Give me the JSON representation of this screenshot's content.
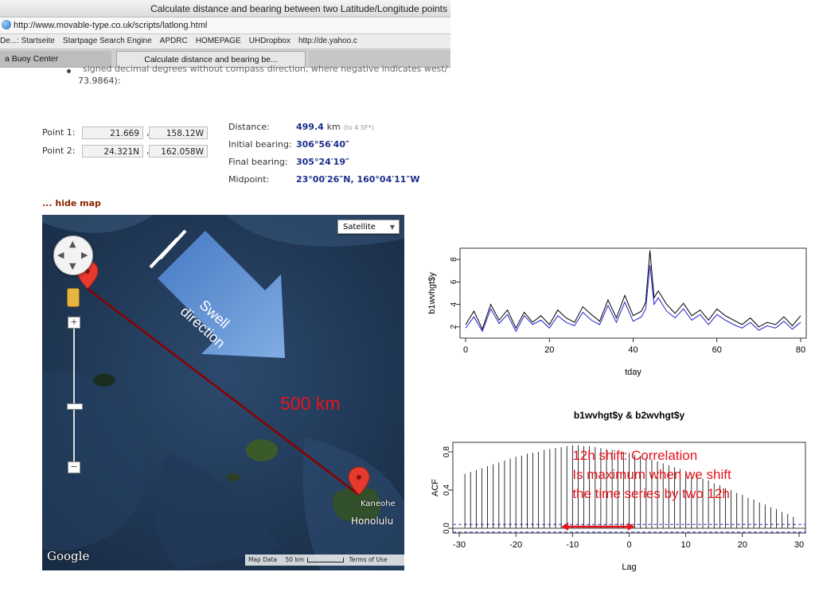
{
  "browser": {
    "window_title": "Calculate distance and bearing between two Latitude/Longitude points",
    "url": "http://www.movable-type.co.uk/scripts/latlong.html",
    "bookmarks": [
      "De...: Startseite",
      "Startpage Search Engine",
      "APDRC",
      "HOMEPAGE",
      "UHDropbox",
      "http://de.yahoo.c"
    ],
    "tabs": [
      "a Buoy Center",
      "Calculate distance and bearing be...",
      ""
    ]
  },
  "page": {
    "clipped_line": "signed decimal degrees without compass direction, where negative indicates west/",
    "clipped_line2": "73.9864):",
    "point1": {
      "label": "Point 1:",
      "lat": "21.669",
      "lon": "158.12W"
    },
    "point2": {
      "label": "Point 2:",
      "lat": "24.321N",
      "lon": "162.058W"
    },
    "comma": ",",
    "results": {
      "distance_label": "Distance:",
      "distance_value": "499.4",
      "distance_unit": "km",
      "distance_note": "(to 4 SF*)",
      "initial_label": "Initial bearing:",
      "initial_value": "306°56′40″",
      "final_label": "Final bearing:",
      "final_value": "305°24′19″",
      "midpoint_label": "Midpoint:",
      "midpoint_value": "23°00′26″N, 160°04′11″W"
    },
    "hide_map": "... hide map"
  },
  "map": {
    "satellite_button": "Satellite",
    "kaneohe": "Kaneohe",
    "honolulu": "Honolulu",
    "google": "Google",
    "map_data": "Map Data",
    "scale": "50 km",
    "terms": "Terms of Use",
    "annotations": {
      "swell_line1": "Swell",
      "swell_line2": "direction",
      "distance": "500 km"
    },
    "colors": {
      "route": "#8b0000",
      "annotation": "#e8141c",
      "marker": "#e8392f"
    }
  },
  "chart_data": [
    {
      "type": "line",
      "xlabel": "tday",
      "ylabel": "b1wvhgt$y",
      "xlim": [
        0,
        80
      ],
      "ylim": [
        1,
        9
      ],
      "xticks": [
        0,
        20,
        40,
        60,
        80
      ],
      "yticks": [
        2,
        4,
        6,
        8
      ],
      "x": [
        0,
        2,
        4,
        6,
        8,
        10,
        12,
        14,
        16,
        18,
        20,
        22,
        24,
        26,
        28,
        30,
        32,
        34,
        36,
        38,
        40,
        42,
        43,
        44,
        45,
        46,
        48,
        50,
        52,
        54,
        56,
        58,
        60,
        62,
        64,
        66,
        68,
        70,
        72,
        74,
        76,
        78,
        80
      ],
      "series": [
        {
          "color": "#000000",
          "values": [
            2.2,
            3.4,
            1.8,
            4.0,
            2.6,
            3.5,
            1.9,
            3.3,
            2.4,
            3.0,
            2.2,
            3.5,
            2.8,
            2.4,
            3.8,
            3.1,
            2.5,
            4.4,
            2.8,
            4.8,
            3.0,
            3.4,
            4.2,
            8.8,
            4.6,
            5.2,
            4.0,
            3.2,
            4.1,
            3.0,
            3.5,
            2.6,
            3.6,
            3.0,
            2.6,
            2.2,
            2.8,
            2.0,
            2.4,
            2.2,
            2.9,
            2.1,
            3.0
          ]
        },
        {
          "color": "#2222cc",
          "values": [
            1.9,
            2.9,
            1.6,
            3.6,
            2.3,
            3.1,
            1.6,
            3.0,
            2.2,
            2.6,
            1.9,
            3.0,
            2.4,
            2.1,
            3.3,
            2.6,
            2.2,
            3.9,
            2.4,
            4.2,
            2.5,
            2.9,
            3.6,
            7.5,
            4.0,
            4.6,
            3.4,
            2.8,
            3.6,
            2.6,
            3.1,
            2.2,
            3.1,
            2.6,
            2.2,
            1.9,
            2.4,
            1.7,
            2.1,
            1.9,
            2.5,
            1.8,
            2.4
          ]
        }
      ]
    },
    {
      "type": "bar",
      "title": "b1wvhgt$y & b2wvhgt$y",
      "xlabel": "Lag",
      "ylabel": "ACF",
      "xlim": [
        -30,
        30
      ],
      "ylim": [
        -0.05,
        0.9
      ],
      "xticks": [
        -30,
        -20,
        -10,
        0,
        10,
        20,
        30
      ],
      "yticks": [
        0.0,
        0.4,
        0.8
      ],
      "lags": [
        -29,
        -28,
        -27,
        -26,
        -25,
        -24,
        -23,
        -22,
        -21,
        -20,
        -19,
        -18,
        -17,
        -16,
        -15,
        -14,
        -13,
        -12,
        -11,
        -10,
        -9,
        -8,
        -7,
        -6,
        -5,
        -4,
        -3,
        -2,
        -1,
        0,
        1,
        2,
        3,
        4,
        5,
        6,
        7,
        8,
        9,
        10,
        11,
        12,
        13,
        14,
        15,
        16,
        17,
        18,
        19,
        20,
        21,
        22,
        23,
        24,
        25,
        26,
        27,
        28,
        29
      ],
      "values": [
        0.57,
        0.59,
        0.61,
        0.63,
        0.65,
        0.67,
        0.69,
        0.71,
        0.73,
        0.75,
        0.76,
        0.78,
        0.79,
        0.8,
        0.82,
        0.83,
        0.84,
        0.85,
        0.86,
        0.87,
        0.87,
        0.86,
        0.86,
        0.85,
        0.84,
        0.83,
        0.82,
        0.81,
        0.8,
        0.79,
        0.77,
        0.76,
        0.74,
        0.72,
        0.7,
        0.68,
        0.66,
        0.64,
        0.62,
        0.6,
        0.57,
        0.55,
        0.52,
        0.5,
        0.47,
        0.45,
        0.42,
        0.4,
        0.37,
        0.35,
        0.32,
        0.3,
        0.27,
        0.25,
        0.22,
        0.2,
        0.17,
        0.15,
        0.12
      ],
      "confidence_band": 0.04,
      "annotation_lines": [
        "12h shift: Correlation",
        "Is maximum when we shift",
        "the time series by two 12h"
      ],
      "annotation_arrow": [
        -12,
        1
      ]
    }
  ]
}
